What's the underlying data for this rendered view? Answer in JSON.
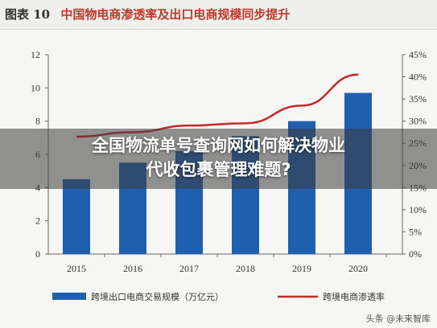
{
  "figure": {
    "label": "图表 10",
    "title": "中国物电商渗透率及出口电商规模同步提升"
  },
  "overlay": {
    "line1": "全国物流单号查询网如何解决物业",
    "line2": "代收包裹管理难题?"
  },
  "watermark": "头条 @未来智库",
  "colors": {
    "bar": "#1f5fb0",
    "line": "#c62828",
    "axis": "#666666"
  },
  "chart_data": {
    "type": "bar+line",
    "categories": [
      "2015",
      "2016",
      "2017",
      "2018",
      "2019",
      "2020"
    ],
    "series": [
      {
        "name": "跨境出口电商交易规模（万亿元）",
        "type": "bar",
        "axis": "left",
        "values": [
          4.5,
          5.5,
          6.2,
          7.1,
          8.0,
          9.7
        ]
      },
      {
        "name": "跨境电商渗透率",
        "type": "line",
        "axis": "right",
        "values": [
          26.5,
          27.5,
          29.0,
          29.5,
          33.5,
          40.5
        ]
      }
    ],
    "y_left": {
      "min": 0,
      "max": 12,
      "step": 2,
      "ticks": [
        "0",
        "2",
        "4",
        "6",
        "8",
        "10",
        "12"
      ]
    },
    "y_right": {
      "min": 0,
      "max": 45,
      "step": 5,
      "ticks": [
        "0%",
        "5%",
        "10%",
        "15%",
        "20%",
        "25%",
        "30%",
        "35%",
        "40%",
        "45%"
      ]
    },
    "legend_position": "bottom"
  }
}
